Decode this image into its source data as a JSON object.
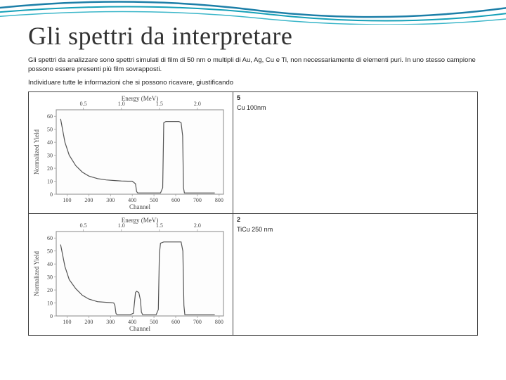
{
  "decoration": {
    "stroke1": "#1d7fa8",
    "stroke2": "#15a0b8",
    "stroke3": "#3bb6c9"
  },
  "title": "Gli spettri da interpretare",
  "body_line1": "Gli spettri da analizzare sono spettri simulati di film di 50 nm o multipli di Au, Ag, Cu e Ti, non necessariamente di elementi puri. In uno stesso campione possono essere presenti più film sovrapposti.",
  "body_line2": "Individuare tutte le informazioni che si possono ricavare, giustificando",
  "rows": [
    {
      "index": "5",
      "label": "Cu 100nm",
      "chart": {
        "xlabel": "Channel",
        "ylabel": "Normalized Yield",
        "top_label": "Energy (MeV)",
        "x_ticks": [
          100,
          200,
          300,
          400,
          500,
          600,
          700,
          800
        ],
        "y_ticks": [
          0,
          10,
          20,
          30,
          40,
          50,
          60
        ],
        "top_ticks": [
          "0.5",
          "1.0",
          "1.5",
          "2.0"
        ],
        "top_tick_pos": [
          175,
          350,
          525,
          700
        ],
        "xlim": [
          50,
          820
        ],
        "ylim": [
          0,
          65
        ],
        "series": [
          [
            70,
            58
          ],
          [
            90,
            40
          ],
          [
            110,
            30
          ],
          [
            140,
            22
          ],
          [
            170,
            17
          ],
          [
            200,
            14
          ],
          [
            240,
            12
          ],
          [
            280,
            11
          ],
          [
            320,
            10.5
          ],
          [
            350,
            10.2
          ],
          [
            380,
            10
          ],
          [
            400,
            10
          ],
          [
            415,
            8
          ],
          [
            420,
            2
          ],
          [
            425,
            1
          ],
          [
            440,
            1
          ],
          [
            500,
            1
          ],
          [
            530,
            1
          ],
          [
            540,
            5
          ],
          [
            545,
            55
          ],
          [
            555,
            56
          ],
          [
            565,
            56
          ],
          [
            590,
            56
          ],
          [
            615,
            56
          ],
          [
            625,
            55
          ],
          [
            632,
            45
          ],
          [
            636,
            5
          ],
          [
            640,
            1
          ],
          [
            700,
            1
          ],
          [
            780,
            1
          ]
        ],
        "line_color": "#555555",
        "bg": "#fdfdfd",
        "grid_color": "#cccccc"
      }
    },
    {
      "index": "2",
      "label": "TiCu 250 nm",
      "chart": {
        "xlabel": "Channel",
        "ylabel": "Normalized Yield",
        "top_label": "Energy (MeV)",
        "x_ticks": [
          100,
          200,
          300,
          400,
          500,
          600,
          700,
          800
        ],
        "y_ticks": [
          0,
          10,
          20,
          30,
          40,
          50,
          60
        ],
        "top_ticks": [
          "0.5",
          "1.0",
          "1.5",
          "2.0"
        ],
        "top_tick_pos": [
          175,
          350,
          525,
          700
        ],
        "xlim": [
          50,
          820
        ],
        "ylim": [
          0,
          65
        ],
        "series": [
          [
            70,
            55
          ],
          [
            90,
            38
          ],
          [
            110,
            28
          ],
          [
            140,
            21
          ],
          [
            170,
            16
          ],
          [
            200,
            13
          ],
          [
            240,
            11
          ],
          [
            280,
            10.5
          ],
          [
            300,
            10.3
          ],
          [
            315,
            10
          ],
          [
            320,
            8
          ],
          [
            325,
            2
          ],
          [
            330,
            1
          ],
          [
            350,
            1
          ],
          [
            390,
            1
          ],
          [
            405,
            2
          ],
          [
            410,
            10
          ],
          [
            415,
            18
          ],
          [
            420,
            19
          ],
          [
            430,
            18
          ],
          [
            438,
            12
          ],
          [
            442,
            3
          ],
          [
            448,
            1
          ],
          [
            480,
            1
          ],
          [
            510,
            1
          ],
          [
            520,
            5
          ],
          [
            525,
            48
          ],
          [
            530,
            56
          ],
          [
            545,
            57
          ],
          [
            570,
            57
          ],
          [
            600,
            57
          ],
          [
            625,
            57
          ],
          [
            633,
            50
          ],
          [
            638,
            8
          ],
          [
            642,
            1
          ],
          [
            700,
            1
          ],
          [
            780,
            1
          ]
        ],
        "line_color": "#555555",
        "bg": "#fdfdfd",
        "grid_color": "#cccccc"
      }
    }
  ]
}
